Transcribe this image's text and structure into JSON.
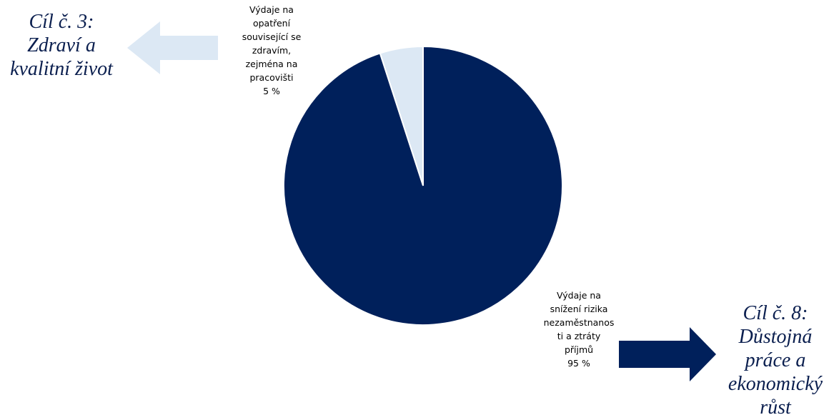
{
  "goals": {
    "left": {
      "lines": [
        "Cíl č. 3:",
        "Zdraví a",
        "kvalitní život"
      ],
      "arrow_color": "#dce8f4"
    },
    "right": {
      "lines": [
        "Cíl č. 8:",
        "Důstojná",
        "práce a",
        "ekonomický",
        "růst"
      ],
      "arrow_color": "#00205b"
    }
  },
  "chart_data": {
    "type": "pie",
    "start": "12 o'clock",
    "direction": "counter-clockwise for first slice",
    "slices": [
      {
        "label_lines": [
          "Výdaje na",
          "opatření",
          "související se",
          "zdravím,",
          "zejména na",
          "pracovišti"
        ],
        "value": 5,
        "value_label": "5 %",
        "color": "#dce8f4"
      },
      {
        "label_lines": [
          "Výdaje na",
          "snížení rizika",
          "nezaměstnanos",
          "ti a ztráty",
          "příjmů"
        ],
        "value": 95,
        "value_label": "95 %",
        "color": "#00205b"
      }
    ]
  }
}
